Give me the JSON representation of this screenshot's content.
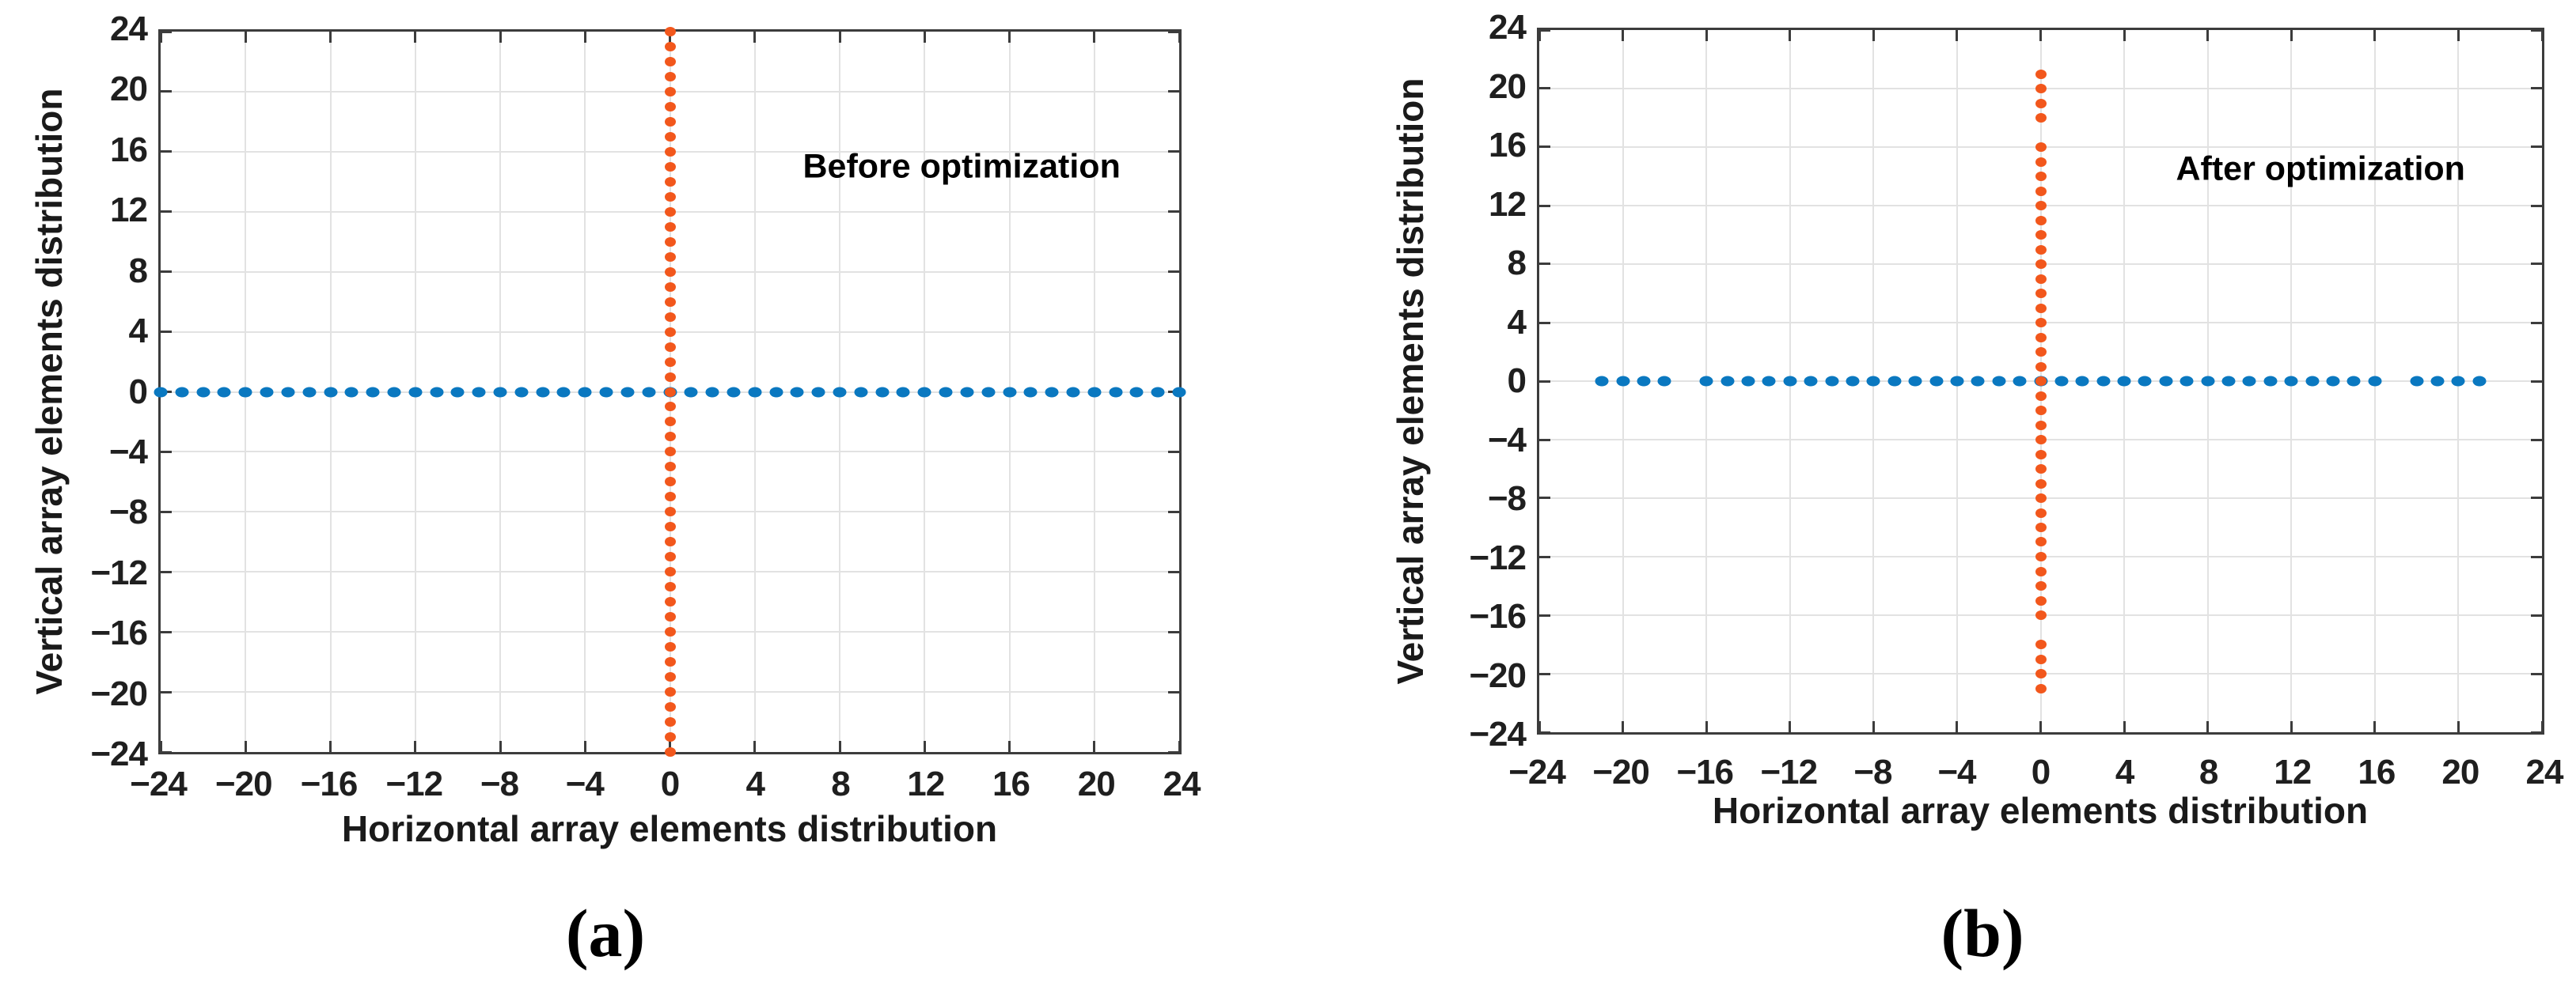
{
  "styles": {
    "background": "#ffffff",
    "grid_color": "#e2e2e2",
    "axis_color": "#3c3c3c",
    "text_color": "#1a1a1a",
    "blue_marker": "#0A78C0",
    "orange_marker": "#F2571C"
  },
  "chart_data": [
    {
      "type": "scatter",
      "panel": "a",
      "caption": "(a)",
      "annotation": {
        "text": "Before optimization",
        "x": 13.75,
        "y": 15.0
      },
      "xlabel": "Horizontal array elements distribution",
      "ylabel": "Vertical array elements distribution",
      "xlim": [
        -24,
        24
      ],
      "ylim": [
        -24,
        24
      ],
      "xticks": [
        -24,
        -20,
        -16,
        -12,
        -8,
        -4,
        0,
        4,
        8,
        12,
        16,
        20,
        24
      ],
      "yticks": [
        -24,
        -20,
        -16,
        -12,
        -8,
        -4,
        0,
        4,
        8,
        12,
        16,
        20,
        24
      ],
      "grid": true,
      "legend": "none",
      "series": [
        {
          "name": "horizontal-array-elements",
          "marker_color": "#0A78C0",
          "orientation": "horizontal",
          "fixed_coordinate": 0,
          "positions": [
            -24,
            -23,
            -22,
            -21,
            -20,
            -19,
            -18,
            -17,
            -16,
            -15,
            -14,
            -13,
            -12,
            -11,
            -10,
            -9,
            -8,
            -7,
            -6,
            -5,
            -4,
            -3,
            -2,
            -1,
            0,
            1,
            2,
            3,
            4,
            5,
            6,
            7,
            8,
            9,
            10,
            11,
            12,
            13,
            14,
            15,
            16,
            17,
            18,
            19,
            20,
            21,
            22,
            23,
            24
          ]
        },
        {
          "name": "vertical-array-elements",
          "marker_color": "#F2571C",
          "orientation": "vertical",
          "fixed_coordinate": 0,
          "positions": [
            -24,
            -23,
            -22,
            -21,
            -20,
            -19,
            -18,
            -17,
            -16,
            -15,
            -14,
            -13,
            -12,
            -11,
            -10,
            -9,
            -8,
            -7,
            -6,
            -5,
            -4,
            -3,
            -2,
            -1,
            0,
            1,
            2,
            3,
            4,
            5,
            6,
            7,
            8,
            9,
            10,
            11,
            12,
            13,
            14,
            15,
            16,
            17,
            18,
            19,
            20,
            21,
            22,
            23,
            24
          ]
        }
      ]
    },
    {
      "type": "scatter",
      "panel": "b",
      "caption": "(b)",
      "annotation": {
        "text": "After optimization",
        "x": 13.4,
        "y": 14.5
      },
      "xlabel": "Horizontal array elements distribution",
      "ylabel": "Vertical array elements distribution",
      "xlim": [
        -24,
        24
      ],
      "ylim": [
        -24,
        24
      ],
      "xticks": [
        -24,
        -20,
        -16,
        -12,
        -8,
        -4,
        0,
        4,
        8,
        12,
        16,
        20,
        24
      ],
      "yticks": [
        -24,
        -20,
        -16,
        -12,
        -8,
        -4,
        0,
        4,
        8,
        12,
        16,
        20,
        24
      ],
      "grid": true,
      "legend": "none",
      "series": [
        {
          "name": "horizontal-array-elements",
          "marker_color": "#0A78C0",
          "orientation": "horizontal",
          "fixed_coordinate": 0,
          "positions": [
            -21,
            -20,
            -19,
            -18,
            -16,
            -15,
            -14,
            -13,
            -12,
            -11,
            -10,
            -9,
            -8,
            -7,
            -6,
            -5,
            -4,
            -3,
            -2,
            -1,
            0,
            1,
            2,
            3,
            4,
            5,
            6,
            7,
            8,
            9,
            10,
            11,
            12,
            13,
            14,
            15,
            16,
            18,
            19,
            20,
            21
          ]
        },
        {
          "name": "vertical-array-elements",
          "marker_color": "#F2571C",
          "orientation": "vertical",
          "fixed_coordinate": 0,
          "positions": [
            -21,
            -20,
            -19,
            -18,
            -16,
            -15,
            -14,
            -13,
            -12,
            -11,
            -10,
            -9,
            -8,
            -7,
            -6,
            -5,
            -4,
            -3,
            -2,
            -1,
            0,
            1,
            2,
            3,
            4,
            5,
            6,
            7,
            8,
            9,
            10,
            11,
            12,
            13,
            14,
            15,
            16,
            18,
            19,
            20,
            21
          ]
        }
      ]
    }
  ]
}
